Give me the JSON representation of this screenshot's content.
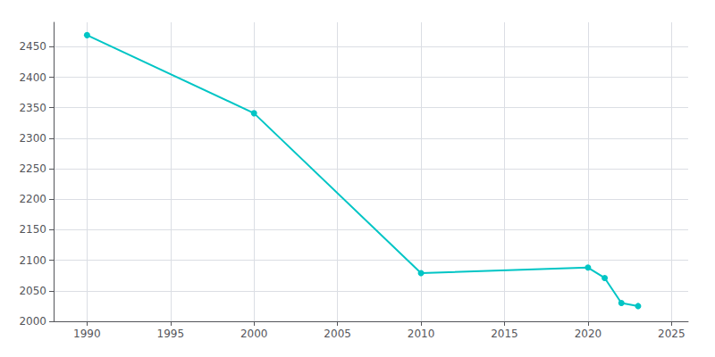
{
  "chart_data": {
    "type": "line",
    "x": [
      1990,
      2000,
      2010,
      2020,
      2021,
      2022,
      2023
    ],
    "values": [
      2469,
      2341,
      2079,
      2088,
      2071,
      2030,
      2025
    ],
    "color": "#00C5C5",
    "marker": "circle",
    "xlim": [
      1988,
      2026
    ],
    "ylim": [
      2000,
      2490
    ],
    "xticks": [
      1990,
      1995,
      2000,
      2005,
      2010,
      2015,
      2020,
      2025
    ],
    "yticks": [
      2000,
      2050,
      2100,
      2150,
      2200,
      2250,
      2300,
      2350,
      2400,
      2450
    ],
    "grid": true
  }
}
